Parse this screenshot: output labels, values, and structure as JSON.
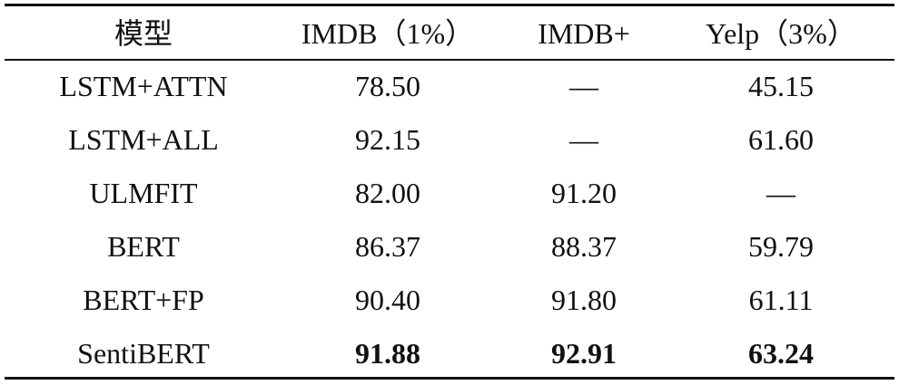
{
  "table": {
    "header": [
      "模型",
      "IMDB（1%）",
      "IMDB+",
      "Yelp（3%）"
    ],
    "rows": [
      [
        "LSTM+ATTN",
        "78.50",
        "—",
        "45.15"
      ],
      [
        "LSTM+ALL",
        "92.15",
        "—",
        "61.60"
      ],
      [
        "ULMFIT",
        "82.00",
        "91.20",
        "—"
      ],
      [
        "BERT",
        "86.37",
        "88.37",
        "59.79"
      ],
      [
        "BERT+FP",
        "90.40",
        "91.80",
        "61.11"
      ],
      [
        "SentiBERT",
        "91.88",
        "92.91",
        "63.24"
      ]
    ]
  }
}
